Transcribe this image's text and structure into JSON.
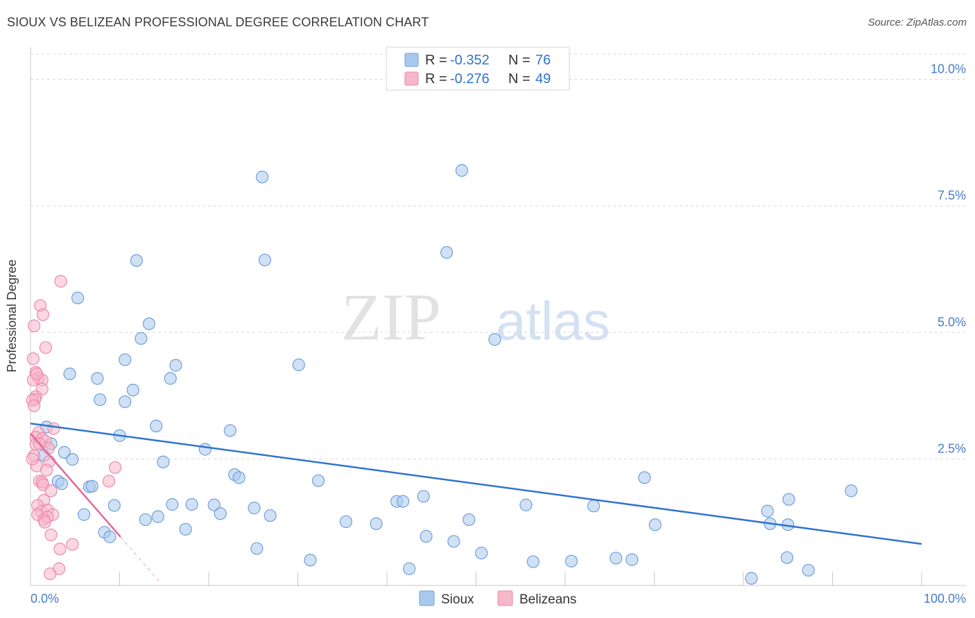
{
  "title": "SIOUX VS BELIZEAN PROFESSIONAL DEGREE CORRELATION CHART",
  "source": "Source: ZipAtlas.com",
  "watermark": {
    "zip": "ZIP",
    "atlas": "atlas"
  },
  "colors": {
    "sioux_fill": "#a9c8ee",
    "sioux_stroke": "#6f9fd8",
    "sioux_line": "#2f73cf",
    "belize_fill": "#f7b7cb",
    "belize_stroke": "#eb8aab",
    "belize_line": "#e0689a",
    "tick": "#4a7cc7",
    "grid": "#d8d8d8"
  },
  "legend": {
    "r_label": "R =",
    "n_label": "N =",
    "sioux_r": "-0.352",
    "sioux_n": "76",
    "belize_r": "-0.276",
    "belize_n": "49"
  },
  "chart_data": {
    "type": "scatter",
    "title": "SIOUX VS BELIZEAN PROFESSIONAL DEGREE CORRELATION CHART",
    "xlabel": "",
    "ylabel": "Professional Degree",
    "xlim": [
      0,
      100
    ],
    "ylim": [
      0,
      10.5
    ],
    "x_tick_labels": {
      "min": "0.0%",
      "max": "100.0%"
    },
    "y_ticks": [
      {
        "value": 2.5,
        "label": "2.5%"
      },
      {
        "value": 5.0,
        "label": "5.0%"
      },
      {
        "value": 7.5,
        "label": "7.5%"
      },
      {
        "value": 10.0,
        "label": "10.0%"
      }
    ],
    "grid": true,
    "legend_position": "top-center",
    "series": [
      {
        "name": "Sioux",
        "r": -0.352,
        "n": 76,
        "trend": {
          "x0": 0,
          "y0": 3.2,
          "x1": 100,
          "y1": 0.82
        },
        "points": [
          [
            26.0,
            8.07
          ],
          [
            48.4,
            8.2
          ],
          [
            11.9,
            6.42
          ],
          [
            26.3,
            6.43
          ],
          [
            46.7,
            6.58
          ],
          [
            5.3,
            5.68
          ],
          [
            13.3,
            5.17
          ],
          [
            12.4,
            4.88
          ],
          [
            52.1,
            4.86
          ],
          [
            10.6,
            4.46
          ],
          [
            16.3,
            4.35
          ],
          [
            30.1,
            4.36
          ],
          [
            4.4,
            4.18
          ],
          [
            7.5,
            4.09
          ],
          [
            15.7,
            4.09
          ],
          [
            11.5,
            3.86
          ],
          [
            7.8,
            3.67
          ],
          [
            10.6,
            3.63
          ],
          [
            14.1,
            3.15
          ],
          [
            22.4,
            3.06
          ],
          [
            10.0,
            2.96
          ],
          [
            1.8,
            3.13
          ],
          [
            2.3,
            2.8
          ],
          [
            1.5,
            2.57
          ],
          [
            3.8,
            2.63
          ],
          [
            4.7,
            2.49
          ],
          [
            19.6,
            2.69
          ],
          [
            14.9,
            2.44
          ],
          [
            22.9,
            2.19
          ],
          [
            23.4,
            2.13
          ],
          [
            32.3,
            2.07
          ],
          [
            68.9,
            2.13
          ],
          [
            3.1,
            2.06
          ],
          [
            3.5,
            2.01
          ],
          [
            6.6,
            1.95
          ],
          [
            6.9,
            1.96
          ],
          [
            92.1,
            1.87
          ],
          [
            9.4,
            1.58
          ],
          [
            15.9,
            1.6
          ],
          [
            18.1,
            1.6
          ],
          [
            20.6,
            1.59
          ],
          [
            25.1,
            1.53
          ],
          [
            41.1,
            1.66
          ],
          [
            41.8,
            1.66
          ],
          [
            44.1,
            1.76
          ],
          [
            55.6,
            1.59
          ],
          [
            63.2,
            1.57
          ],
          [
            85.1,
            1.7
          ],
          [
            6.0,
            1.4
          ],
          [
            12.9,
            1.3
          ],
          [
            14.3,
            1.36
          ],
          [
            21.3,
            1.42
          ],
          [
            26.9,
            1.38
          ],
          [
            35.4,
            1.26
          ],
          [
            38.8,
            1.22
          ],
          [
            49.2,
            1.3
          ],
          [
            70.1,
            1.2
          ],
          [
            82.7,
            1.47
          ],
          [
            83.0,
            1.22
          ],
          [
            85.0,
            1.2
          ],
          [
            8.3,
            1.05
          ],
          [
            8.9,
            0.96
          ],
          [
            17.4,
            1.11
          ],
          [
            44.4,
            0.97
          ],
          [
            47.5,
            0.87
          ],
          [
            25.4,
            0.73
          ],
          [
            50.6,
            0.64
          ],
          [
            56.4,
            0.47
          ],
          [
            60.7,
            0.48
          ],
          [
            65.7,
            0.54
          ],
          [
            42.5,
            0.33
          ],
          [
            67.5,
            0.51
          ],
          [
            80.9,
            0.14
          ],
          [
            84.9,
            0.55
          ],
          [
            87.3,
            0.3
          ],
          [
            31.4,
            0.5
          ]
        ]
      },
      {
        "name": "Belizeans",
        "r": -0.276,
        "n": 49,
        "trend": {
          "x0": 0,
          "y0": 3.0,
          "x1": 10.1,
          "y1": 0.96,
          "dash_to_x": 14.5
        },
        "points": [
          [
            3.4,
            6.01
          ],
          [
            1.1,
            5.53
          ],
          [
            1.4,
            5.35
          ],
          [
            0.4,
            5.13
          ],
          [
            1.7,
            4.7
          ],
          [
            0.3,
            4.48
          ],
          [
            0.6,
            4.21
          ],
          [
            0.9,
            4.1
          ],
          [
            1.3,
            4.06
          ],
          [
            0.3,
            4.06
          ],
          [
            1.3,
            3.88
          ],
          [
            0.6,
            3.73
          ],
          [
            0.5,
            3.68
          ],
          [
            0.2,
            3.66
          ],
          [
            2.6,
            3.1
          ],
          [
            0.9,
            3.02
          ],
          [
            0.6,
            2.93
          ],
          [
            1.3,
            2.9
          ],
          [
            1.7,
            2.85
          ],
          [
            0.6,
            2.79
          ],
          [
            2.0,
            2.71
          ],
          [
            0.4,
            2.56
          ],
          [
            2.1,
            2.45
          ],
          [
            0.7,
            2.36
          ],
          [
            9.5,
            2.33
          ],
          [
            1.8,
            2.28
          ],
          [
            1.0,
            2.06
          ],
          [
            1.3,
            2.04
          ],
          [
            1.4,
            1.99
          ],
          [
            8.8,
            2.06
          ],
          [
            2.3,
            1.87
          ],
          [
            1.5,
            1.68
          ],
          [
            0.8,
            1.58
          ],
          [
            1.2,
            1.46
          ],
          [
            1.9,
            1.49
          ],
          [
            0.8,
            1.4
          ],
          [
            2.5,
            1.4
          ],
          [
            1.5,
            1.3
          ],
          [
            1.9,
            1.35
          ],
          [
            2.3,
            1.0
          ],
          [
            4.7,
            0.81
          ],
          [
            3.3,
            0.72
          ],
          [
            3.2,
            0.33
          ],
          [
            2.2,
            0.23
          ],
          [
            0.2,
            2.5
          ],
          [
            1.0,
            2.8
          ],
          [
            0.4,
            3.55
          ],
          [
            1.6,
            1.25
          ],
          [
            0.7,
            4.18
          ]
        ]
      }
    ]
  }
}
